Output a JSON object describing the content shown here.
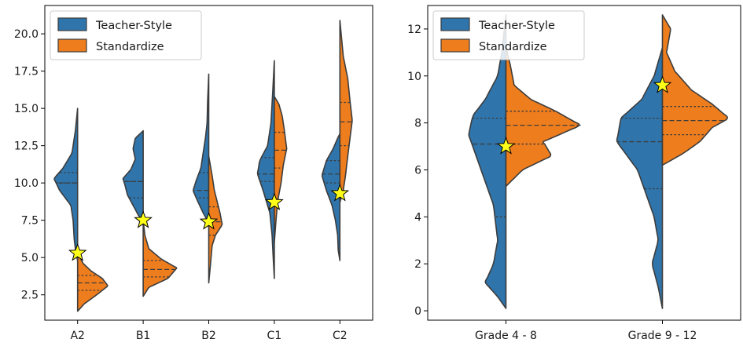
{
  "colors": {
    "teacher": "#2f75ac",
    "standardize": "#ee7d1e",
    "star": "#ffff1a"
  },
  "chart_data": [
    {
      "type": "violin",
      "split": true,
      "categories": [
        "A2",
        "B1",
        "B2",
        "C1",
        "C2"
      ],
      "yticks": [
        "2.5",
        "5.0",
        "7.5",
        "10.0",
        "12.5",
        "15.0",
        "17.5",
        "20.0"
      ],
      "ylim": [
        0.8,
        21.9
      ],
      "grid": false,
      "legend_position": "top-left",
      "series": [
        {
          "name": "Teacher-Style",
          "color_key": "teacher",
          "violins": [
            {
              "category": "A2",
              "min": 4.8,
              "max": 15.0,
              "q1": 10.0,
              "median": 10.0,
              "q3": 10.7,
              "profile": [
                [
                  4.8,
                  0
                ],
                [
                  5.3,
                  1.5
                ],
                [
                  6.2,
                  3
                ],
                [
                  7.5,
                  4
                ],
                [
                  8.5,
                  6
                ],
                [
                  9.5,
                  16
                ],
                [
                  10.3,
                  21
                ],
                [
                  11.0,
                  13
                ],
                [
                  12.0,
                  5
                ],
                [
                  13.5,
                  2
                ],
                [
                  15.0,
                  0
                ]
              ]
            },
            {
              "category": "B1",
              "min": 7.5,
              "max": 13.5,
              "q1": 9.0,
              "median": 10.1,
              "q3": 10.1,
              "profile": [
                [
                  7.5,
                  0
                ],
                [
                  7.8,
                  4
                ],
                [
                  8.5,
                  9
                ],
                [
                  9.2,
                  14
                ],
                [
                  9.8,
                  16
                ],
                [
                  10.3,
                  18
                ],
                [
                  10.9,
                  11
                ],
                [
                  11.6,
                  7
                ],
                [
                  12.3,
                  9
                ],
                [
                  13.0,
                  7
                ],
                [
                  13.5,
                  0
                ]
              ]
            },
            {
              "category": "B2",
              "min": 7.3,
              "max": 17.3,
              "q1": 9.0,
              "median": 9.5,
              "q3": 10.7,
              "profile": [
                [
                  7.3,
                  0
                ],
                [
                  8.0,
                  5
                ],
                [
                  8.8,
                  10
                ],
                [
                  9.5,
                  14
                ],
                [
                  10.2,
                  11
                ],
                [
                  11.0,
                  7
                ],
                [
                  12.0,
                  5
                ],
                [
                  13.0,
                  3
                ],
                [
                  14.0,
                  1.5
                ],
                [
                  15.5,
                  1
                ],
                [
                  17.3,
                  0
                ]
              ]
            },
            {
              "category": "C1",
              "min": 3.6,
              "max": 18.2,
              "q1": 10.1,
              "median": 10.6,
              "q3": 11.7,
              "profile": [
                [
                  3.6,
                  0
                ],
                [
                  5.0,
                  1
                ],
                [
                  6.5,
                  2
                ],
                [
                  8.0,
                  4
                ],
                [
                  9.5,
                  10
                ],
                [
                  10.6,
                  15
                ],
                [
                  11.5,
                  13
                ],
                [
                  12.5,
                  6
                ],
                [
                  14.0,
                  3
                ],
                [
                  16.0,
                  1.5
                ],
                [
                  18.2,
                  0
                ]
              ]
            },
            {
              "category": "C2",
              "min": 4.8,
              "max": 13.3,
              "q1": 10.0,
              "median": 10.6,
              "q3": 11.5,
              "profile": [
                [
                  4.8,
                  0
                ],
                [
                  5.5,
                  1.5
                ],
                [
                  6.5,
                  2
                ],
                [
                  7.5,
                  4
                ],
                [
                  8.5,
                  7
                ],
                [
                  9.5,
                  12
                ],
                [
                  10.5,
                  16
                ],
                [
                  11.5,
                  12
                ],
                [
                  12.3,
                  6
                ],
                [
                  13.0,
                  2
                ],
                [
                  13.3,
                  0
                ]
              ]
            }
          ]
        },
        {
          "name": "Standardize",
          "color_key": "standardize",
          "violins": [
            {
              "category": "A2",
              "min": 1.4,
              "max": 5.3,
              "q1": 2.8,
              "median": 3.3,
              "q3": 3.8,
              "profile": [
                [
                  1.4,
                  0
                ],
                [
                  1.9,
                  6
                ],
                [
                  2.5,
                  17
                ],
                [
                  3.1,
                  27
                ],
                [
                  3.6,
                  22
                ],
                [
                  4.1,
                  12
                ],
                [
                  4.6,
                  5
                ],
                [
                  5.3,
                  0
                ]
              ]
            },
            {
              "category": "B1",
              "min": 2.4,
              "max": 7.5,
              "q1": 3.7,
              "median": 4.2,
              "q3": 4.8,
              "profile": [
                [
                  2.4,
                  0
                ],
                [
                  3.0,
                  5
                ],
                [
                  3.6,
                  22
                ],
                [
                  4.3,
                  30
                ],
                [
                  4.9,
                  16
                ],
                [
                  5.6,
                  5
                ],
                [
                  6.5,
                  1.5
                ],
                [
                  7.5,
                  0
                ]
              ]
            },
            {
              "category": "B2",
              "min": 3.3,
              "max": 11.8,
              "q1": 6.5,
              "median": 7.4,
              "q3": 8.4,
              "profile": [
                [
                  3.3,
                  0
                ],
                [
                  4.5,
                  1.5
                ],
                [
                  5.8,
                  3
                ],
                [
                  6.5,
                  6
                ],
                [
                  7.2,
                  12
                ],
                [
                  8.0,
                  10
                ],
                [
                  8.6,
                  8
                ],
                [
                  9.5,
                  5
                ],
                [
                  10.5,
                  3
                ],
                [
                  11.8,
                  0
                ]
              ]
            },
            {
              "category": "C1",
              "min": 6.0,
              "max": 15.8,
              "q1": 11.0,
              "median": 12.2,
              "q3": 13.4,
              "profile": [
                [
                  6.0,
                  0
                ],
                [
                  7.5,
                  1.5
                ],
                [
                  8.8,
                  3
                ],
                [
                  10.0,
                  6
                ],
                [
                  11.2,
                  8
                ],
                [
                  12.3,
                  11
                ],
                [
                  13.5,
                  9
                ],
                [
                  14.5,
                  7
                ],
                [
                  15.3,
                  4
                ],
                [
                  15.8,
                  0
                ]
              ]
            },
            {
              "category": "C2",
              "min": 8.7,
              "max": 20.9,
              "q1": 12.5,
              "median": 14.1,
              "q3": 15.4,
              "profile": [
                [
                  8.7,
                  0
                ],
                [
                  9.5,
                  3
                ],
                [
                  10.5,
                  5
                ],
                [
                  11.8,
                  7
                ],
                [
                  13.0,
                  9
                ],
                [
                  14.2,
                  11
                ],
                [
                  15.5,
                  9
                ],
                [
                  17.0,
                  7
                ],
                [
                  18.5,
                  3
                ],
                [
                  20.9,
                  0
                ]
              ]
            }
          ]
        }
      ],
      "stars": [
        {
          "category": "A2",
          "value": 5.3
        },
        {
          "category": "B1",
          "value": 7.5
        },
        {
          "category": "B2",
          "value": 7.4
        },
        {
          "category": "C1",
          "value": 8.7
        },
        {
          "category": "C2",
          "value": 9.3
        }
      ]
    },
    {
      "type": "violin",
      "split": true,
      "categories": [
        "Grade 4 - 8",
        "Grade 9 - 12"
      ],
      "yticks": [
        "0",
        "2",
        "4",
        "6",
        "8",
        "10",
        "12"
      ],
      "ylim": [
        -0.4,
        13.0
      ],
      "grid": false,
      "legend_position": "top-left",
      "series": [
        {
          "name": "Teacher-Style",
          "color_key": "teacher",
          "violins": [
            {
              "category": "Grade 4 - 8",
              "min": 0.1,
              "max": 12.6,
              "q1": 4.0,
              "median": 7.1,
              "q3": 8.2,
              "profile": [
                [
                  0.1,
                  0
                ],
                [
                  0.6,
                  2
                ],
                [
                  1.2,
                  5
                ],
                [
                  2.0,
                  3
                ],
                [
                  3.0,
                  2
                ],
                [
                  4.5,
                  3
                ],
                [
                  5.5,
                  5
                ],
                [
                  6.5,
                  7
                ],
                [
                  7.5,
                  9
                ],
                [
                  8.3,
                  8
                ],
                [
                  9.0,
                  5
                ],
                [
                  10.0,
                  2
                ],
                [
                  11.0,
                  1
                ],
                [
                  12.6,
                  0
                ]
              ]
            },
            {
              "category": "Grade 9 - 12",
              "min": 0.1,
              "max": 11.2,
              "q1": 5.2,
              "median": 7.2,
              "q3": 8.2,
              "profile": [
                [
                  0.1,
                  0
                ],
                [
                  1.0,
                  1
                ],
                [
                  2.0,
                  2.5
                ],
                [
                  3.0,
                  1
                ],
                [
                  4.0,
                  2
                ],
                [
                  5.0,
                  4
                ],
                [
                  6.0,
                  6
                ],
                [
                  7.2,
                  11
                ],
                [
                  8.2,
                  10
                ],
                [
                  9.0,
                  5
                ],
                [
                  10.0,
                  2
                ],
                [
                  11.2,
                  0
                ]
              ]
            }
          ]
        },
        {
          "name": "Standardize",
          "color_key": "standardize",
          "violins": [
            {
              "category": "Grade 4 - 8",
              "min": 5.3,
              "max": 11.2,
              "q1": 7.1,
              "median": 7.9,
              "q3": 8.5,
              "profile": [
                [
                  5.3,
                  0
                ],
                [
                  6.0,
                  4
                ],
                [
                  6.6,
                  11
                ],
                [
                  7.2,
                  9
                ],
                [
                  7.9,
                  18
                ],
                [
                  8.5,
                  12
                ],
                [
                  9.0,
                  6
                ],
                [
                  9.6,
                  2
                ],
                [
                  10.5,
                  1
                ],
                [
                  11.2,
                  0
                ]
              ]
            },
            {
              "category": "Grade 9 - 12",
              "min": 6.2,
              "max": 12.6,
              "q1": 7.5,
              "median": 8.1,
              "q3": 8.7,
              "profile": [
                [
                  6.2,
                  0
                ],
                [
                  6.7,
                  5
                ],
                [
                  7.2,
                  9
                ],
                [
                  7.8,
                  12
                ],
                [
                  8.2,
                  16
                ],
                [
                  8.8,
                  12
                ],
                [
                  9.4,
                  7
                ],
                [
                  10.2,
                  3
                ],
                [
                  11.0,
                  1
                ],
                [
                  11.5,
                  1.5
                ],
                [
                  12.0,
                  2
                ],
                [
                  12.6,
                  0
                ]
              ]
            }
          ]
        }
      ],
      "stars": [
        {
          "category": "Grade 4 - 8",
          "value": 7.0
        },
        {
          "category": "Grade 9 - 12",
          "value": 9.6
        }
      ]
    }
  ]
}
